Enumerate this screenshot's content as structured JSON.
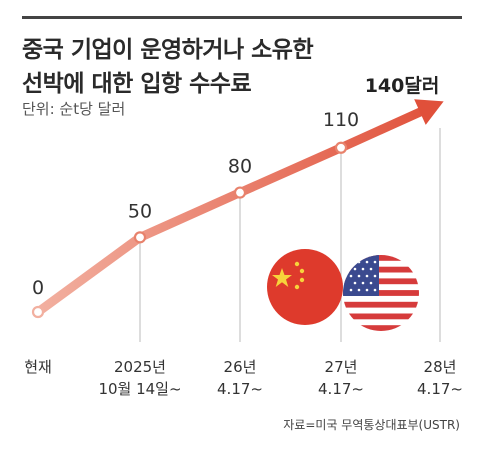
{
  "header": {
    "title_line1": "중국 기업이 운영하거나 소유한",
    "title_line2": "선박에 대한 입항 수수료",
    "unit": "단위: 순t당 달러"
  },
  "chart_data": {
    "type": "line",
    "title": "중국 기업이 운영하거나 소유한 선박에 대한 입항 수수료",
    "ylabel": "단위: 순t당 달러",
    "categories": [
      [
        "현재"
      ],
      [
        "2025년",
        "10월 14일~"
      ],
      [
        "26년",
        "4.17~"
      ],
      [
        "27년",
        "4.17~"
      ],
      [
        "28년",
        "4.17~"
      ]
    ],
    "values": [
      0,
      50,
      80,
      110,
      140
    ],
    "value_labels": [
      "0",
      "50",
      "80",
      "110",
      "140달러"
    ],
    "colors": {
      "line_start": "#f2b0a0",
      "line_end": "#e0503a",
      "marker_fill": "#ffffff",
      "guide": "#bbbbbb"
    },
    "ylim": [
      0,
      150
    ]
  },
  "flags": {
    "left": "china-flag",
    "right": "usa-flag"
  },
  "source": "자료=미국 무역통상대표부(USTR)"
}
